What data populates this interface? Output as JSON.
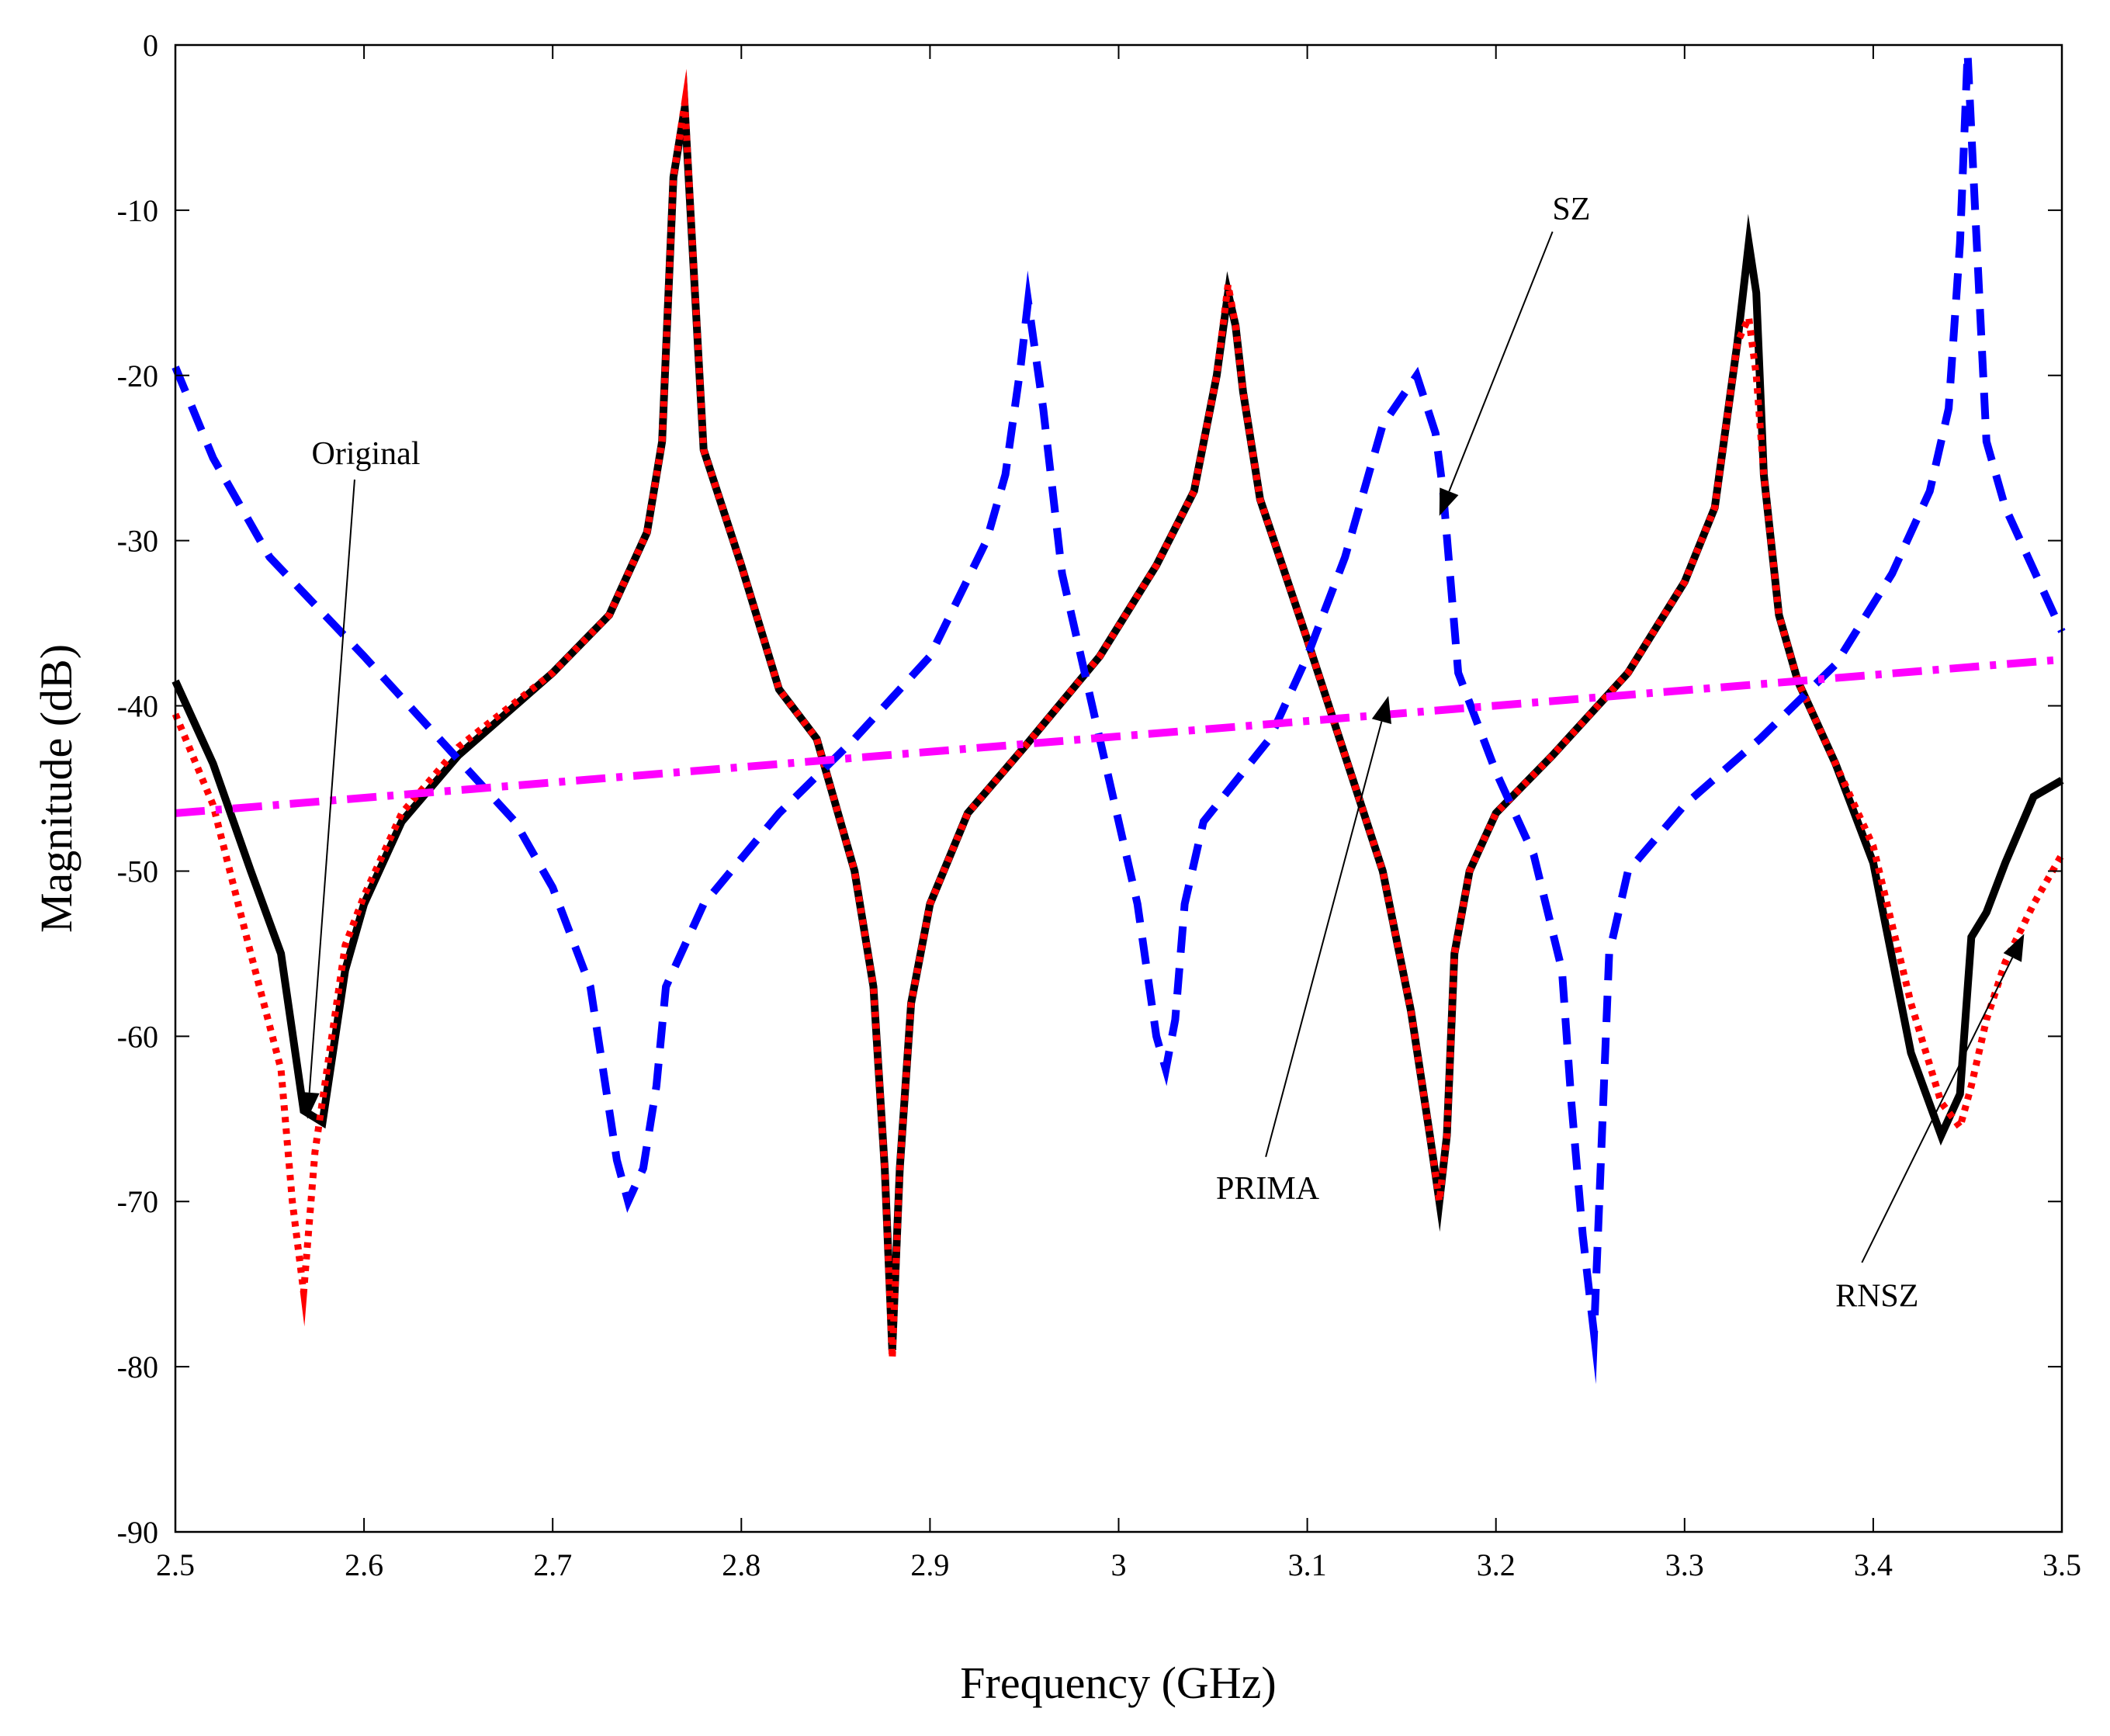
{
  "chart_data": {
    "type": "line",
    "title": "",
    "xlabel": "Frequency (GHz)",
    "ylabel": "Magnitude (dB)",
    "xlim": [
      2.5,
      3.5
    ],
    "ylim": [
      -90,
      0
    ],
    "grid": false,
    "xticks": [
      2.5,
      2.6,
      2.7,
      2.8,
      2.9,
      3,
      3.1,
      3.2,
      3.3,
      3.4,
      3.5
    ],
    "xtick_labels": [
      "2.5",
      "2.6",
      "2.7",
      "2.8",
      "2.9",
      "3",
      "3.1",
      "3.2",
      "3.3",
      "3.4",
      "3.5"
    ],
    "yticks": [
      0,
      -10,
      -20,
      -30,
      -40,
      -50,
      -60,
      -70,
      -80,
      -90
    ],
    "ytick_labels": [
      "0",
      "-10",
      "-20",
      "-30",
      "-40",
      "-50",
      "-60",
      "-70",
      "-80",
      "-90"
    ],
    "series": [
      {
        "name": "Original",
        "color": "#000000",
        "style": "solid",
        "x": [
          2.5,
          2.52,
          2.54,
          2.556,
          2.568,
          2.578,
          2.59,
          2.6,
          2.62,
          2.65,
          2.7,
          2.73,
          2.75,
          2.758,
          2.764,
          2.77,
          2.78,
          2.8,
          2.82,
          2.84,
          2.86,
          2.87,
          2.876,
          2.88,
          2.884,
          2.89,
          2.9,
          2.92,
          2.95,
          2.99,
          3.02,
          3.04,
          3.052,
          3.058,
          3.062,
          3.066,
          3.075,
          3.1,
          3.12,
          3.14,
          3.155,
          3.165,
          3.17,
          3.174,
          3.178,
          3.186,
          3.2,
          3.23,
          3.27,
          3.3,
          3.316,
          3.328,
          3.334,
          3.338,
          3.342,
          3.35,
          3.36,
          3.38,
          3.4,
          3.42,
          3.436,
          3.446,
          3.452,
          3.46,
          3.47,
          3.485,
          3.5
        ],
        "values": [
          -38.5,
          -43.5,
          -50,
          -55,
          -64.5,
          -65.2,
          -56,
          -52,
          -47,
          -43,
          -38,
          -34.5,
          -29.5,
          -24,
          -8,
          -3.8,
          -24.5,
          -31.5,
          -39,
          -42,
          -50,
          -57,
          -68,
          -79,
          -68,
          -58,
          -52,
          -46.5,
          -42.5,
          -37,
          -31.5,
          -27,
          -20,
          -15,
          -17,
          -21,
          -27.5,
          -36,
          -43,
          -50,
          -58.5,
          -66,
          -70,
          -66,
          -55,
          -50,
          -46.5,
          -43,
          -38,
          -32.5,
          -28,
          -18,
          -12,
          -15,
          -26,
          -34.5,
          -38.5,
          -43.5,
          -49.5,
          -61,
          -66,
          -63.5,
          -54,
          -52.5,
          -49.5,
          -45.5,
          -44.5
        ]
      },
      {
        "name": "RNSZ",
        "color": "#ff0000",
        "style": "dotted",
        "x": [
          2.5,
          2.52,
          2.54,
          2.556,
          2.562,
          2.568,
          2.574,
          2.59,
          2.6,
          2.62,
          2.65,
          2.7,
          2.73,
          2.75,
          2.758,
          2.764,
          2.77,
          2.78,
          2.8,
          2.82,
          2.84,
          2.86,
          2.87,
          2.876,
          2.88,
          2.884,
          2.89,
          2.9,
          2.92,
          2.95,
          2.99,
          3.02,
          3.04,
          3.052,
          3.058,
          3.062,
          3.066,
          3.075,
          3.1,
          3.12,
          3.14,
          3.155,
          3.165,
          3.17,
          3.174,
          3.178,
          3.186,
          3.2,
          3.23,
          3.27,
          3.3,
          3.316,
          3.328,
          3.334,
          3.338,
          3.342,
          3.35,
          3.36,
          3.38,
          3.4,
          3.42,
          3.436,
          3.446,
          3.452,
          3.46,
          3.47,
          3.485,
          3.5
        ],
        "values": [
          -40.5,
          -46,
          -55,
          -62,
          -70,
          -75.5,
          -67,
          -54.5,
          -51.5,
          -46.5,
          -42.5,
          -38,
          -34.5,
          -29.5,
          -24,
          -8,
          -3.5,
          -24.5,
          -31.5,
          -39,
          -42,
          -50,
          -57,
          -68,
          -79.5,
          -68,
          -58,
          -52,
          -46.5,
          -42.5,
          -37,
          -31.5,
          -27,
          -20,
          -14.5,
          -17,
          -21,
          -27.5,
          -36,
          -43,
          -50,
          -58.5,
          -66,
          -70,
          -66,
          -55,
          -50,
          -46.5,
          -43,
          -38,
          -32.5,
          -28,
          -18,
          -16.5,
          -20,
          -26,
          -34.5,
          -38.5,
          -43.5,
          -48.5,
          -58,
          -64,
          -65.5,
          -63,
          -59,
          -55.5,
          -52,
          -49
        ]
      },
      {
        "name": "SZ",
        "color": "#0000ff",
        "style": "dashed",
        "x": [
          2.5,
          2.52,
          2.55,
          2.6,
          2.64,
          2.68,
          2.7,
          2.72,
          2.728,
          2.734,
          2.74,
          2.748,
          2.755,
          2.76,
          2.78,
          2.82,
          2.86,
          2.9,
          2.93,
          2.94,
          2.948,
          2.952,
          2.96,
          2.97,
          2.99,
          3.01,
          3.02,
          3.025,
          3.03,
          3.035,
          3.045,
          3.08,
          3.1,
          3.12,
          3.14,
          3.158,
          3.168,
          3.172,
          3.18,
          3.2,
          3.22,
          3.235,
          3.24,
          3.246,
          3.252,
          3.26,
          3.27,
          3.3,
          3.34,
          3.38,
          3.41,
          3.43,
          3.44,
          3.446,
          3.45,
          3.454,
          3.46,
          3.47,
          3.5
        ],
        "values": [
          -19.5,
          -25,
          -31,
          -37,
          -42,
          -47,
          -51,
          -57,
          -63,
          -67.5,
          -70,
          -68,
          -63,
          -57,
          -52,
          -46.5,
          -42,
          -37,
          -30,
          -26,
          -19.5,
          -15.5,
          -22,
          -32,
          -42,
          -52,
          -60,
          -62,
          -59,
          -52,
          -47,
          -42,
          -37,
          -31,
          -23,
          -20,
          -23.5,
          -27,
          -38,
          -44,
          -49,
          -56,
          -64,
          -72,
          -78,
          -55,
          -50,
          -46,
          -42,
          -37.5,
          -32,
          -27,
          -22,
          -12,
          -0.5,
          -10,
          -24,
          -28,
          -35.5
        ]
      },
      {
        "name": "PRIMA",
        "color": "#ff00ff",
        "style": "dashdot",
        "x": [
          2.5,
          3.5
        ],
        "values": [
          -46.5,
          -37.2
        ]
      }
    ],
    "annotations": [
      {
        "text": "Original",
        "label_at": [
          2.601,
          -24.7
        ],
        "arrow_from": [
          2.595,
          -26.3
        ],
        "arrow_to": [
          2.57,
          -65
        ]
      },
      {
        "text": "SZ",
        "label_at": [
          3.24,
          -9.9
        ],
        "arrow_from": [
          3.23,
          -11.3
        ],
        "arrow_to": [
          3.17,
          -28.5
        ]
      },
      {
        "text": "PRIMA",
        "label_at": [
          3.079,
          -69.2
        ],
        "arrow_from": [
          3.078,
          -67.3
        ],
        "arrow_to": [
          3.143,
          -39.4
        ]
      },
      {
        "text": "RNSZ",
        "label_at": [
          3.402,
          -75.7
        ],
        "arrow_from": [
          3.394,
          -73.7
        ],
        "arrow_to": [
          3.48,
          -53.8
        ]
      }
    ]
  }
}
